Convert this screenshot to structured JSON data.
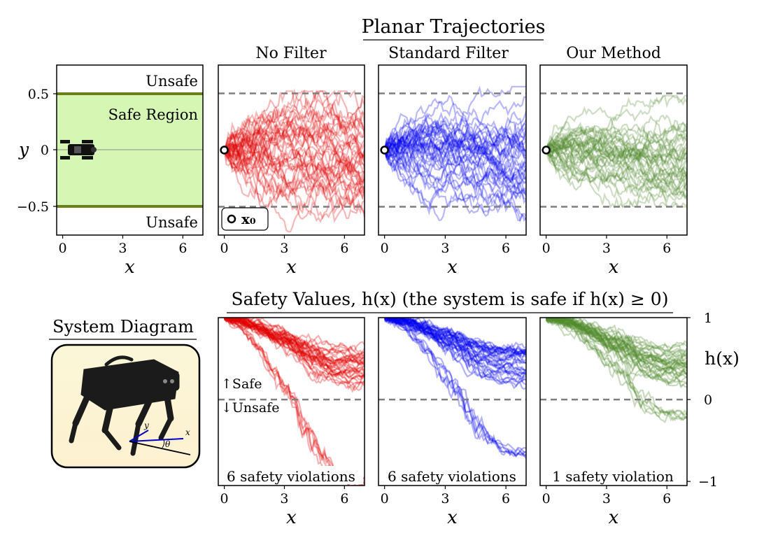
{
  "figure": {
    "planar_title": "Planar Trajectories",
    "safety_title": "Safety Values, h(x) (the system is safe if h(x) ≥ 0)",
    "system_diagram_title": "System Diagram"
  },
  "colors": {
    "no_filter": "#e00000",
    "standard_filter": "#0000ee",
    "our_method": "#4f8a2a",
    "safe_region_fill": "#d6f7b4",
    "boundary_line": "#6b7f1c",
    "dashed": "#7f7f7f"
  },
  "schematic": {
    "y_label": "y",
    "x_label": "x",
    "unsafe_top": "Unsafe",
    "unsafe_bottom": "Unsafe",
    "safe_region_label": "Safe Region",
    "y_ticks": [
      "0.5",
      "0",
      "−0.5"
    ],
    "x_ticks": [
      "0",
      "3",
      "6"
    ]
  },
  "diagram_inset": {
    "axis_y": "y",
    "axis_x": "x",
    "axis_theta": "θ"
  },
  "legend_x0": "x₀",
  "safe_arrow_label": "Safe",
  "unsafe_arrow_label": "Unsafe",
  "h_axis_label": "h(x)",
  "chart_data": [
    {
      "type": "line",
      "panel": "planar",
      "title": "No Filter",
      "xlabel": "x",
      "ylabel": "y",
      "xlim": [
        -0.3,
        7
      ],
      "ylim": [
        -0.75,
        0.75
      ],
      "x_ticks": [
        0,
        3,
        6
      ],
      "y_ticks": [
        0.5,
        0,
        -0.5
      ],
      "reference_lines": [
        0.5,
        -0.5
      ],
      "start_point": [
        0,
        0
      ],
      "num_trajectories": 40,
      "final_y_range": [
        -0.7,
        0.5
      ],
      "series_color": "#e00000"
    },
    {
      "type": "line",
      "panel": "planar",
      "title": "Standard Filter",
      "xlabel": "x",
      "ylabel": "y",
      "xlim": [
        -0.3,
        7
      ],
      "ylim": [
        -0.75,
        0.75
      ],
      "x_ticks": [
        0,
        3,
        6
      ],
      "y_ticks": [
        0.5,
        0,
        -0.5
      ],
      "reference_lines": [
        0.5,
        -0.5
      ],
      "start_point": [
        0,
        0
      ],
      "num_trajectories": 40,
      "final_y_range": [
        -0.6,
        0.55
      ],
      "series_color": "#0000ee"
    },
    {
      "type": "line",
      "panel": "planar",
      "title": "Our Method",
      "xlabel": "x",
      "ylabel": "y",
      "xlim": [
        -0.3,
        7
      ],
      "ylim": [
        -0.75,
        0.75
      ],
      "x_ticks": [
        0,
        3,
        6
      ],
      "y_ticks": [
        0.5,
        0,
        -0.5
      ],
      "reference_lines": [
        0.5,
        -0.5
      ],
      "start_point": [
        0,
        0
      ],
      "num_trajectories": 40,
      "final_y_range": [
        -0.5,
        0.45
      ],
      "series_color": "#4f8a2a"
    },
    {
      "type": "line",
      "panel": "safety",
      "annotation": "6 safety violations",
      "xlabel": "x",
      "ylabel": "h(x)",
      "xlim": [
        -0.3,
        7
      ],
      "ylim": [
        -1.05,
        1
      ],
      "x_ticks": [
        0,
        3,
        6
      ],
      "y_ticks": [
        1,
        0,
        -1
      ],
      "reference_lines": [
        0
      ],
      "num_trajectories": 40,
      "min_h": -1.0,
      "series_color": "#e00000"
    },
    {
      "type": "line",
      "panel": "safety",
      "annotation": "6 safety violations",
      "xlabel": "x",
      "ylabel": "h(x)",
      "xlim": [
        -0.3,
        7
      ],
      "ylim": [
        -1.05,
        1
      ],
      "x_ticks": [
        0,
        3,
        6
      ],
      "y_ticks": [
        1,
        0,
        -1
      ],
      "reference_lines": [
        0
      ],
      "num_trajectories": 40,
      "min_h": -0.65,
      "series_color": "#0000ee"
    },
    {
      "type": "line",
      "panel": "safety",
      "annotation": "1 safety violation",
      "xlabel": "x",
      "ylabel": "h(x)",
      "xlim": [
        -0.3,
        7
      ],
      "ylim": [
        -1.05,
        1
      ],
      "x_ticks": [
        0,
        3,
        6
      ],
      "y_ticks": [
        1,
        0,
        -1
      ],
      "reference_lines": [
        0
      ],
      "num_trajectories": 40,
      "min_h": -0.2,
      "series_color": "#4f8a2a"
    }
  ]
}
